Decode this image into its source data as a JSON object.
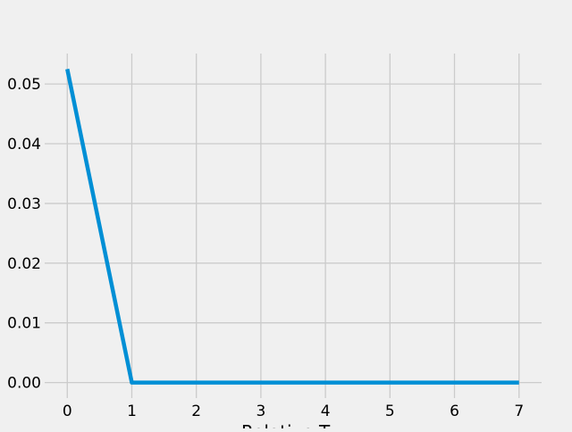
{
  "chart_data": {
    "type": "line",
    "title": "",
    "xlabel": "Relative T...",
    "ylabel": "",
    "x": [
      0,
      1,
      2,
      3,
      4,
      5,
      6,
      7
    ],
    "series": [
      {
        "values": [
          0.0525,
          0.0,
          0.0,
          0.0,
          0.0,
          0.0,
          0.0,
          0.0
        ],
        "color": "#008fd5"
      }
    ],
    "xlim": [
      -0.35,
      7.35
    ],
    "ylim": [
      -0.0026,
      0.0551
    ],
    "x_ticks": [
      "0",
      "1",
      "2",
      "3",
      "4",
      "5",
      "6",
      "7"
    ],
    "y_ticks": [
      "0.00",
      "0.01",
      "0.02",
      "0.03",
      "0.04",
      "0.05"
    ],
    "y_tick_values": [
      0.0,
      0.01,
      0.02,
      0.03,
      0.04,
      0.05
    ],
    "grid": true,
    "legend": "none",
    "style": "fivethirtyeight",
    "background_color": "#f0f0f0",
    "grid_color": "#cbcbcb"
  }
}
